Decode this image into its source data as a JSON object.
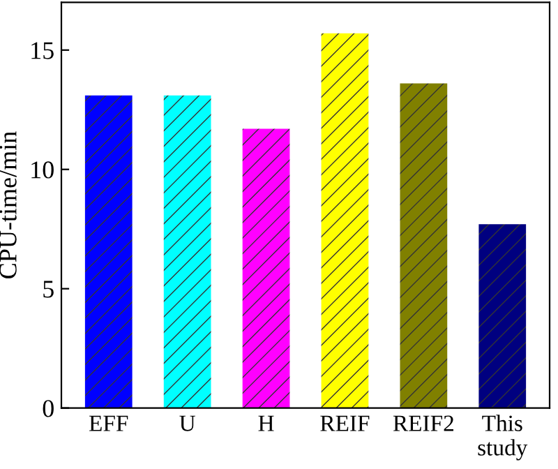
{
  "chart_data": {
    "type": "bar",
    "ylabel": "CPU-time/min",
    "categories": [
      "EFF",
      "U",
      "H",
      "REIF",
      "REIF2",
      "This\nstudy"
    ],
    "values": [
      13.1,
      13.1,
      11.7,
      15.7,
      13.6,
      7.7
    ],
    "colors": [
      "#0000ff",
      "#00ffff",
      "#ff00ff",
      "#ffff00",
      "#808000",
      "#000080"
    ],
    "ylim": [
      0,
      17
    ],
    "yticks": [
      0,
      5,
      10,
      15
    ],
    "grid": false,
    "legend": false
  }
}
